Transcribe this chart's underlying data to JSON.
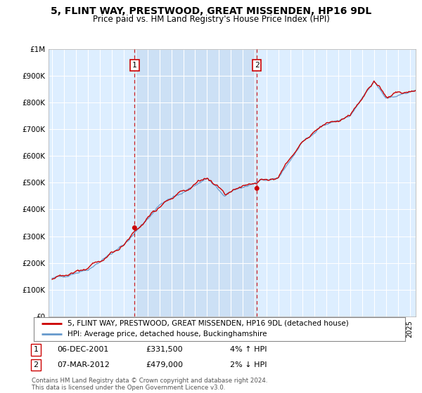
{
  "title": "5, FLINT WAY, PRESTWOOD, GREAT MISSENDEN, HP16 9DL",
  "subtitle": "Price paid vs. HM Land Registry's House Price Index (HPI)",
  "ylabel_ticks": [
    "£0",
    "£100K",
    "£200K",
    "£300K",
    "£400K",
    "£500K",
    "£600K",
    "£700K",
    "£800K",
    "£900K",
    "£1M"
  ],
  "ytick_values": [
    0,
    100000,
    200000,
    300000,
    400000,
    500000,
    600000,
    700000,
    800000,
    900000,
    1000000
  ],
  "ylim": [
    0,
    1000000
  ],
  "xlim_start": 1994.7,
  "xlim_end": 2025.5,
  "sale1_year": 2001.92,
  "sale1_price": 331500,
  "sale2_year": 2012.18,
  "sale2_price": 479000,
  "sale1_label": "1",
  "sale2_label": "2",
  "legend_line1": "5, FLINT WAY, PRESTWOOD, GREAT MISSENDEN, HP16 9DL (detached house)",
  "legend_line2": "HPI: Average price, detached house, Buckinghamshire",
  "annotation1_date": "06-DEC-2001",
  "annotation1_price": "£331,500",
  "annotation1_hpi": "4% ↑ HPI",
  "annotation2_date": "07-MAR-2012",
  "annotation2_price": "£479,000",
  "annotation2_hpi": "2% ↓ HPI",
  "copyright_text": "Contains HM Land Registry data © Crown copyright and database right 2024.\nThis data is licensed under the Open Government Licence v3.0.",
  "line_color_red": "#cc0000",
  "line_color_blue": "#6699cc",
  "bg_color": "#ddeeff",
  "highlight_color": "#cce0f5",
  "grid_color": "#ffffff",
  "title_fontsize": 10,
  "subtitle_fontsize": 9
}
